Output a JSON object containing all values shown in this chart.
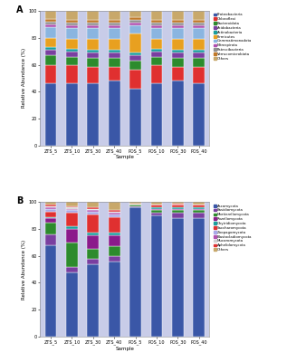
{
  "panel_A": {
    "samples": [
      "ZTS_5",
      "ZTS_10",
      "ZTS_30",
      "ZTS_40",
      "POS_5",
      "POS_10",
      "POS_30",
      "POS_40"
    ],
    "legend_labels": [
      "Proteobacteria",
      "Chloroflexi",
      "Bacteroidota",
      "Acidobacteria",
      "Actinobacteria",
      "Firmicutes",
      "Gemmatimonadota",
      "Nitrospirota",
      "Patescibacteria",
      "Verrucomicrobiota",
      "Others"
    ],
    "colors": [
      "#3a57a7",
      "#e03030",
      "#2d8b2d",
      "#7a3fa0",
      "#1a9e9e",
      "#e8a020",
      "#8ab5e0",
      "#b050b0",
      "#909090",
      "#c07828",
      "#c8a86a"
    ],
    "data": [
      [
        46,
        14,
        7,
        4,
        2,
        7,
        8,
        2,
        2,
        2,
        6
      ],
      [
        46,
        14,
        6,
        4,
        2,
        7,
        8,
        2,
        2,
        2,
        7
      ],
      [
        46,
        12,
        7,
        4,
        2,
        8,
        8,
        2,
        2,
        2,
        7
      ],
      [
        48,
        10,
        7,
        4,
        2,
        8,
        8,
        2,
        2,
        2,
        7
      ],
      [
        42,
        14,
        7,
        4,
        2,
        14,
        6,
        2,
        2,
        2,
        5
      ],
      [
        46,
        14,
        6,
        4,
        2,
        7,
        8,
        2,
        2,
        2,
        7
      ],
      [
        48,
        10,
        7,
        4,
        2,
        8,
        8,
        2,
        2,
        2,
        7
      ],
      [
        46,
        12,
        7,
        4,
        2,
        8,
        8,
        2,
        2,
        2,
        7
      ]
    ]
  },
  "panel_B": {
    "samples": [
      "ZTS_5",
      "ZTS_10",
      "ZTS_30",
      "ZTS_40",
      "POS_5",
      "POS_10",
      "POS_30",
      "POS_40"
    ],
    "legend_labels": [
      "Ascomycota",
      "Basidiomycota",
      "Mortierellomycota",
      "Rozellomycota",
      "Chytridiomycota",
      "Saccharomycota",
      "Zoopagomycota",
      "Blastocladiomycota",
      "Mucoromycota",
      "Aphelidomycota",
      "Others"
    ],
    "colors": [
      "#3a57a7",
      "#7a3fa0",
      "#2d8b2d",
      "#8b1a8b",
      "#1a9e9e",
      "#e03030",
      "#a8a8e8",
      "#b050b0",
      "#d0d0d0",
      "#e03030",
      "#c8a86a"
    ],
    "data": [
      [
        68,
        8,
        9,
        3,
        1,
        4,
        2,
        1,
        1,
        1,
        2
      ],
      [
        48,
        4,
        18,
        10,
        2,
        10,
        2,
        1,
        1,
        1,
        3
      ],
      [
        54,
        4,
        7,
        10,
        2,
        14,
        2,
        1,
        1,
        1,
        4
      ],
      [
        56,
        4,
        7,
        8,
        2,
        12,
        2,
        1,
        1,
        1,
        6
      ],
      [
        96,
        1,
        1,
        0,
        0,
        1,
        0,
        0,
        0,
        0,
        1
      ],
      [
        90,
        2,
        2,
        1,
        1,
        2,
        0,
        0,
        0,
        0,
        2
      ],
      [
        88,
        4,
        2,
        1,
        1,
        2,
        0,
        0,
        0,
        1,
        1
      ],
      [
        88,
        4,
        2,
        1,
        1,
        2,
        0,
        0,
        0,
        0,
        2
      ]
    ]
  },
  "bg_bar_color": "#c8cce8",
  "background_color": "#ffffff",
  "bar_width": 0.55,
  "bar_edge_color": "white",
  "bar_linewidth": 0.3
}
